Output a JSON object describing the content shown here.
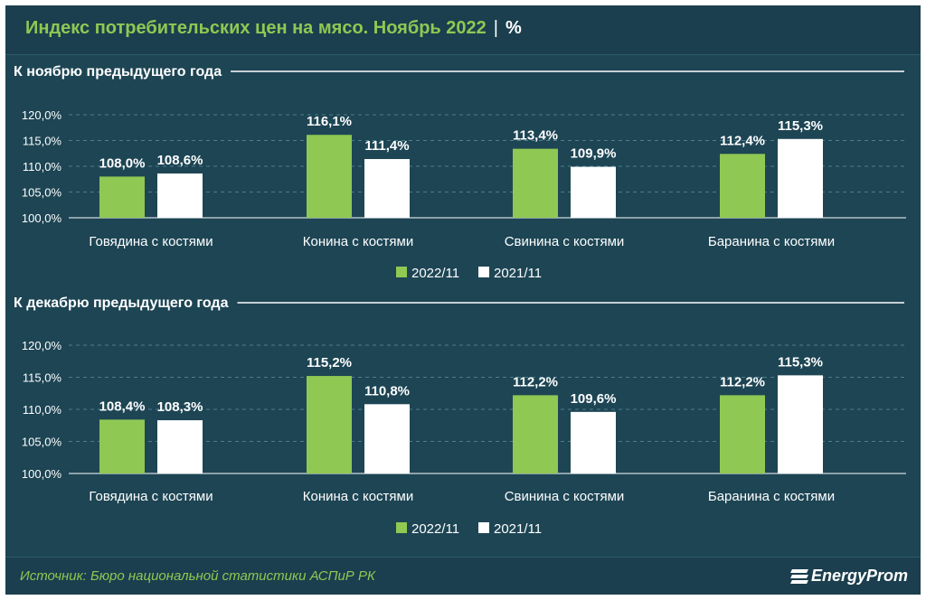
{
  "title": "Индекс потребительских цен на мясо. Ноябрь 2022",
  "title_sep": "|",
  "title_unit": "%",
  "source": "Источник: Бюро национальной статистики АСПиР РК",
  "logo_text": "EnergyProm",
  "colors": {
    "series1": "#8fc853",
    "series2": "#ffffff",
    "background": "#1d4554",
    "grid": "#4d7d8c"
  },
  "chart_data": [
    {
      "type": "bar",
      "title": "К ноябрю предыдущего года",
      "categories": [
        "Говядина с костями",
        "Конина с костями",
        "Свинина с костями",
        "Баранина с костями"
      ],
      "series": [
        {
          "name": "2022/11",
          "values": [
            108.0,
            116.1,
            113.4,
            112.4
          ],
          "labels": [
            "108,0%",
            "116,1%",
            "113,4%",
            "112,4%"
          ]
        },
        {
          "name": "2021/11",
          "values": [
            108.6,
            111.4,
            109.9,
            115.3
          ],
          "labels": [
            "108,6%",
            "111,4%",
            "109,9%",
            "115,3%"
          ]
        }
      ],
      "yticks": [
        "100,0%",
        "105,0%",
        "110,0%",
        "115,0%",
        "120,0%"
      ],
      "ylim": [
        100,
        120
      ],
      "grid": true,
      "legend_position": "bottom"
    },
    {
      "type": "bar",
      "title": "К декабрю предыдущего года",
      "categories": [
        "Говядина с костями",
        "Конина с костями",
        "Свинина с костями",
        "Баранина с костями"
      ],
      "series": [
        {
          "name": "2022/11",
          "values": [
            108.4,
            115.2,
            112.2,
            112.2
          ],
          "labels": [
            "108,4%",
            "115,2%",
            "112,2%",
            "112,2%"
          ]
        },
        {
          "name": "2021/11",
          "values": [
            108.3,
            110.8,
            109.6,
            115.3
          ],
          "labels": [
            "108,3%",
            "110,8%",
            "109,6%",
            "115,3%"
          ]
        }
      ],
      "yticks": [
        "100,0%",
        "105,0%",
        "110,0%",
        "115,0%",
        "120,0%"
      ],
      "ylim": [
        100,
        120
      ],
      "grid": true,
      "legend_position": "bottom"
    }
  ]
}
